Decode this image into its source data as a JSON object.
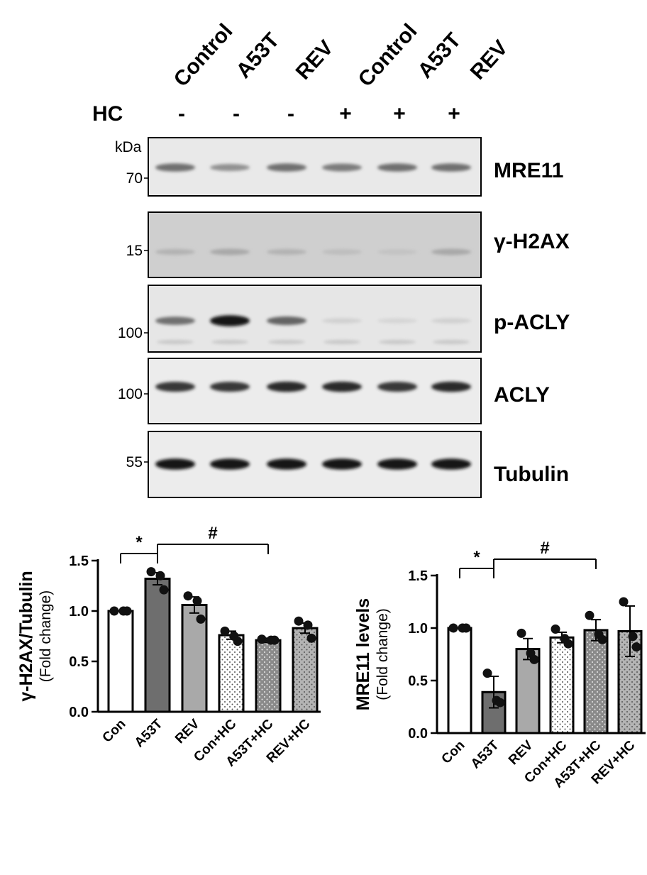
{
  "blot": {
    "lanes": [
      "Control",
      "A53T",
      "REV",
      "Control",
      "A53T",
      "REV"
    ],
    "treatment_label": "HC",
    "treatment_signs": [
      "-",
      "-",
      "-",
      "+",
      "+",
      "+"
    ],
    "kda_label": "kDa",
    "panels": [
      {
        "protein": "MRE11",
        "marker": "70",
        "intensities": [
          0.55,
          0.4,
          0.55,
          0.5,
          0.55,
          0.55
        ],
        "background": "#e9e9e9"
      },
      {
        "protein": "γ-H2AX",
        "marker": "15",
        "intensities": [
          0.25,
          0.3,
          0.25,
          0.2,
          0.18,
          0.3
        ],
        "background": "#cfcfcf"
      },
      {
        "protein": "p-ACLY",
        "marker": "100",
        "intensities": [
          0.55,
          0.95,
          0.6,
          0.12,
          0.1,
          0.12
        ],
        "background": "#e6e6e6"
      },
      {
        "protein": "ACLY",
        "marker": "100",
        "intensities": [
          0.8,
          0.8,
          0.85,
          0.85,
          0.8,
          0.85
        ],
        "background": "#ececec"
      },
      {
        "protein": "Tubulin",
        "marker": "55",
        "intensities": [
          0.95,
          0.95,
          0.95,
          0.95,
          0.95,
          0.95
        ],
        "background": "#ececec"
      }
    ]
  },
  "chart_data": [
    {
      "type": "bar",
      "title": "",
      "ylabel": "γ-H2AX/Tubulin",
      "ylabel_sub": "(Fold change)",
      "ylim": [
        0,
        1.5
      ],
      "yticks": [
        "0.0",
        "0.5",
        "1.0",
        "1.5"
      ],
      "categories": [
        "Con",
        "A53T",
        "REV",
        "Con+HC",
        "A53T+HC",
        "REV+HC"
      ],
      "values": [
        1.0,
        1.32,
        1.06,
        0.76,
        0.71,
        0.83
      ],
      "errors": [
        0.0,
        0.06,
        0.08,
        0.04,
        0.02,
        0.05
      ],
      "points": [
        [
          1.0,
          1.0,
          1.0
        ],
        [
          1.39,
          1.35,
          1.21
        ],
        [
          1.15,
          1.1,
          0.92
        ],
        [
          0.8,
          0.75,
          0.7
        ],
        [
          0.72,
          0.71,
          0.71
        ],
        [
          0.9,
          0.86,
          0.73
        ]
      ],
      "significance": [
        {
          "symbol": "*",
          "from": 0,
          "to": 1
        },
        {
          "symbol": "#",
          "from": 1,
          "to": 4
        }
      ]
    },
    {
      "type": "bar",
      "title": "",
      "ylabel": "MRE11 levels",
      "ylabel_sub": "(Fold change)",
      "ylim": [
        0,
        1.5
      ],
      "yticks": [
        "0.0",
        "0.5",
        "1.0",
        "1.5"
      ],
      "categories": [
        "Con",
        "A53T",
        "REV",
        "Con+HC",
        "A53T+HC",
        "REV+HC"
      ],
      "values": [
        1.0,
        0.39,
        0.8,
        0.91,
        0.98,
        0.97
      ],
      "errors": [
        0.0,
        0.15,
        0.1,
        0.05,
        0.1,
        0.24
      ],
      "points": [
        [
          1.0,
          1.0,
          1.0
        ],
        [
          0.57,
          0.31,
          0.29
        ],
        [
          0.95,
          0.76,
          0.7
        ],
        [
          0.99,
          0.9,
          0.85
        ],
        [
          1.12,
          0.94,
          0.89
        ],
        [
          1.25,
          0.92,
          0.82
        ]
      ],
      "significance": [
        {
          "symbol": "*",
          "from": 0,
          "to": 1
        },
        {
          "symbol": "#",
          "from": 1,
          "to": 4
        }
      ]
    }
  ]
}
